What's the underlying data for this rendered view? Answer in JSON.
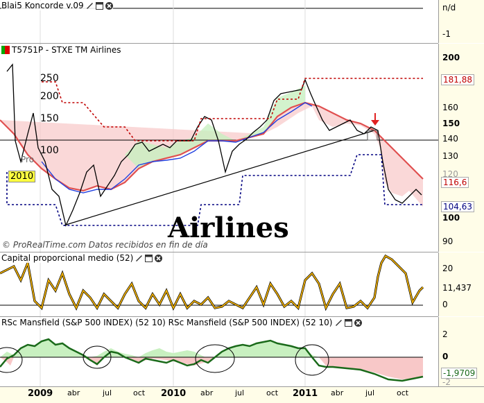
{
  "panels": {
    "koncorde": {
      "title": "Blai5 Koncorde v.09",
      "value": "n/d",
      "tick": "-1"
    },
    "price": {
      "title": "T5751P - STXE TM Airlines",
      "overlay_ticks": [
        "250",
        "200",
        "150",
        "100"
      ],
      "partial_label": "Pro",
      "year_badge": "2010",
      "watermark": "Airlines",
      "footer": "© ProRealTime.com Datos recibidos en fin de día",
      "axis_ticks": [
        "200",
        "160",
        "150",
        "140",
        "130",
        "120",
        "100",
        "90"
      ],
      "value_labels": {
        "top": "181,88",
        "mid": "116,6",
        "low": "104,63"
      },
      "colors": {
        "top": "#c00000",
        "mid": "#c00000",
        "low": "#000080"
      }
    },
    "capital": {
      "title": "Capital proporcional medio (52)",
      "axis_ticks": [
        "20",
        "0"
      ],
      "value": "11,437"
    },
    "rsc": {
      "title": "RSc Mansfield (S&P 500 INDEX) (52 10) RSc Mansfield (S&P 500 INDEX) (52 10)",
      "axis_ticks": [
        "2",
        "0",
        "-2"
      ],
      "value": "-1,9709"
    }
  },
  "x_axis": [
    {
      "label": "2009",
      "bold": true
    },
    {
      "label": "abr",
      "bold": false
    },
    {
      "label": "jul",
      "bold": false
    },
    {
      "label": "oct",
      "bold": false
    },
    {
      "label": "2010",
      "bold": true
    },
    {
      "label": "abr",
      "bold": false
    },
    {
      "label": "jul",
      "bold": false
    },
    {
      "label": "oct",
      "bold": false
    },
    {
      "label": "2011",
      "bold": true
    },
    {
      "label": "abr",
      "bold": false
    },
    {
      "label": "jul",
      "bold": false
    },
    {
      "label": "oct",
      "bold": false
    }
  ],
  "icons": [
    "wrench-icon",
    "window-icon",
    "close-icon"
  ]
}
